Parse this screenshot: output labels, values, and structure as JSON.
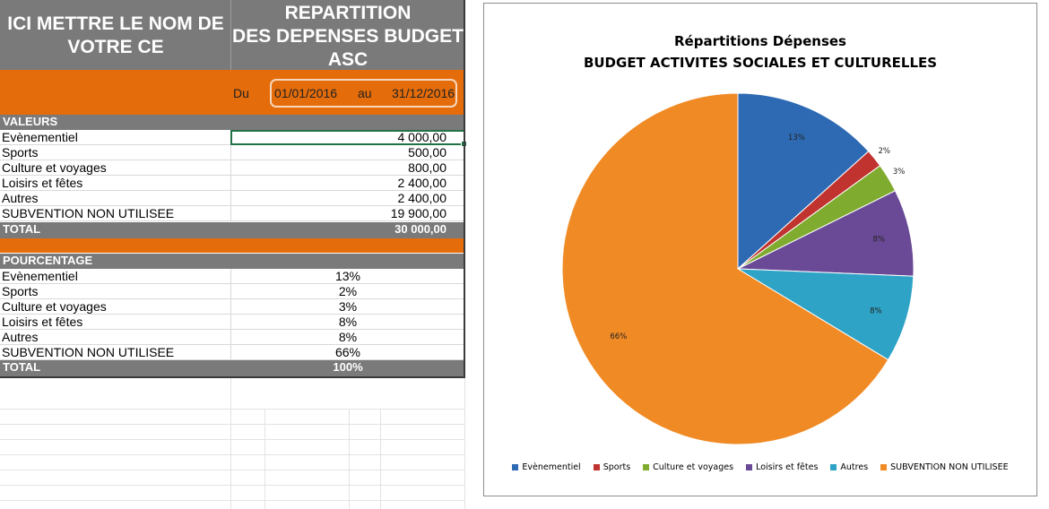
{
  "header": {
    "ce_name_line1": "ICI METTRE LE NOM DE",
    "ce_name_line2": "VOTRE CE",
    "title_line1": "REPARTITION",
    "title_line2": "DES DEPENSES BUDGET",
    "title_line3": "ASC"
  },
  "period": {
    "du_label": "Du",
    "start": "01/01/2016",
    "au_label": "au",
    "end": "31/12/2016"
  },
  "values": {
    "section_label": "VALEURS",
    "rows": [
      {
        "label": "Evènementiel",
        "value": "4 000,00"
      },
      {
        "label": "Sports",
        "value": "500,00"
      },
      {
        "label": "Culture et voyages",
        "value": "800,00"
      },
      {
        "label": "Loisirs et fêtes",
        "value": "2 400,00"
      },
      {
        "label": "Autres",
        "value": "2 400,00"
      },
      {
        "label": "SUBVENTION NON UTILISEE",
        "value": "19 900,00"
      }
    ],
    "total_label": "TOTAL",
    "total_value": "30 000,00"
  },
  "percent": {
    "section_label": "POURCENTAGE",
    "rows": [
      {
        "label": "Evènementiel",
        "value": "13%"
      },
      {
        "label": "Sports",
        "value": "2%"
      },
      {
        "label": "Culture et voyages",
        "value": "3%"
      },
      {
        "label": "Loisirs et fêtes",
        "value": "8%"
      },
      {
        "label": "Autres",
        "value": "8%"
      },
      {
        "label": "SUBVENTION NON UTILISEE",
        "value": "66%"
      }
    ],
    "total_label": "TOTAL",
    "total_value": "100%"
  },
  "colors": {
    "header_gray": "#7a7a7a",
    "accent_orange": "#e46c0a",
    "selection_green": "#217346"
  },
  "chart_data": {
    "type": "pie",
    "title_line1": "Répartitions Dépenses",
    "title_line2": "BUDGET ACTIVITES SOCIALES ET CULTURELLES",
    "categories": [
      "Evènementiel",
      "Sports",
      "Culture et voyages",
      "Loisirs et fêtes",
      "Autres",
      "SUBVENTION NON UTILISEE"
    ],
    "values": [
      4000,
      500,
      800,
      2400,
      2400,
      19900
    ],
    "labels": [
      "13%",
      "2%",
      "3%",
      "8%",
      "8%",
      "66%"
    ],
    "colors": [
      "#2e6ab3",
      "#c0332f",
      "#7fab2f",
      "#6a4a96",
      "#2ea3c6",
      "#f08a24"
    ],
    "legend_position": "bottom"
  }
}
